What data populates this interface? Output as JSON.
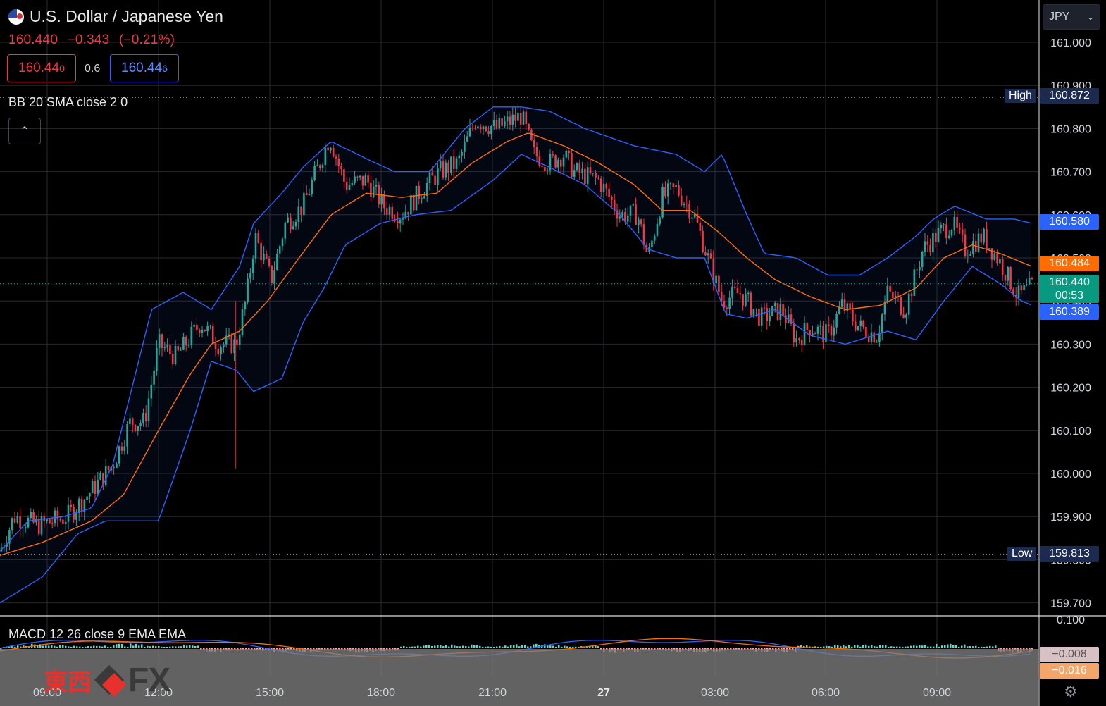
{
  "header": {
    "symbol_name": "U.S. Dollar / Japanese Yen",
    "last_price": "160.440",
    "change": "−0.343",
    "change_pct": "(−0.21%)",
    "bid_main": "160.44",
    "bid_sup": "0",
    "spread": "0.6",
    "ask_main": "160.44",
    "ask_sup": "6"
  },
  "indicators": {
    "bb_label": "BB 20 SMA close 2 0",
    "macd_label": "MACD 12 26 close 9 EMA EMA",
    "collapse_icon": "chevron-up-icon"
  },
  "price_axis": {
    "currency": "JPY",
    "ticks": [
      "161.000",
      "160.900",
      "160.800",
      "160.700",
      "160.600",
      "160.500",
      "160.400",
      "160.300",
      "160.200",
      "160.100",
      "160.000",
      "159.900",
      "159.800",
      "159.700",
      "0.100"
    ],
    "high_label": "High",
    "high_value": "160.872",
    "low_label": "Low",
    "low_value": "159.813",
    "bb_upper_value": "160.580",
    "bb_basis_value": "160.484",
    "current_value": "160.440",
    "countdown": "00:53",
    "bb_lower_value": "160.389",
    "macd_value_1": "−0.008",
    "macd_value_2": "−0.016"
  },
  "time_axis": {
    "labels": [
      "09:00",
      "12:00",
      "15:00",
      "18:00",
      "21:00",
      "27",
      "03:00",
      "06:00",
      "09:00"
    ]
  },
  "colors": {
    "up": "#26a69a",
    "down": "#f23645",
    "bb_band": "#2962ff",
    "bb_basis": "#ff6d00",
    "macd_line": "#2962ff",
    "signal_line": "#ff6d00",
    "current_tag": "#089981",
    "upper_tag": "#2962ff",
    "basis_tag": "#ff6d00"
  },
  "watermark": {
    "kanji": "東西",
    "fx": "FX"
  },
  "chart_data": {
    "type": "candlestick",
    "title": "U.S. Dollar / Japanese Yen",
    "y_range": [
      159.7,
      161.02
    ],
    "anchors": [
      [
        0,
        159.82
      ],
      [
        20,
        159.9
      ],
      [
        55,
        159.88
      ],
      [
        95,
        159.9
      ],
      [
        130,
        159.96
      ],
      [
        160,
        160.02
      ],
      [
        185,
        160.12
      ],
      [
        205,
        160.12
      ],
      [
        225,
        160.3
      ],
      [
        250,
        160.27
      ],
      [
        285,
        160.35
      ],
      [
        310,
        160.3
      ],
      [
        335,
        160.3
      ],
      [
        350,
        160.41
      ],
      [
        362,
        160.55
      ],
      [
        385,
        160.45
      ],
      [
        405,
        160.58
      ],
      [
        430,
        160.62
      ],
      [
        468,
        160.78
      ],
      [
        490,
        160.67
      ],
      [
        520,
        160.68
      ],
      [
        545,
        160.62
      ],
      [
        570,
        160.6
      ],
      [
        600,
        160.66
      ],
      [
        625,
        160.7
      ],
      [
        650,
        160.72
      ],
      [
        675,
        160.82
      ],
      [
        705,
        160.8
      ],
      [
        740,
        160.83
      ],
      [
        758,
        160.74
      ],
      [
        780,
        160.72
      ],
      [
        800,
        160.74
      ],
      [
        815,
        160.7
      ],
      [
        850,
        160.68
      ],
      [
        880,
        160.6
      ],
      [
        905,
        160.6
      ],
      [
        920,
        160.5
      ],
      [
        940,
        160.64
      ],
      [
        960,
        160.66
      ],
      [
        985,
        160.6
      ],
      [
        1005,
        160.5
      ],
      [
        1025,
        160.4
      ],
      [
        1050,
        160.42
      ],
      [
        1080,
        160.36
      ],
      [
        1110,
        160.38
      ],
      [
        1130,
        160.31
      ],
      [
        1150,
        160.34
      ],
      [
        1175,
        160.32
      ],
      [
        1195,
        160.39
      ],
      [
        1220,
        160.34
      ],
      [
        1245,
        160.32
      ],
      [
        1260,
        160.42
      ],
      [
        1285,
        160.38
      ],
      [
        1310,
        160.52
      ],
      [
        1335,
        160.56
      ],
      [
        1352,
        160.58
      ],
      [
        1370,
        160.52
      ],
      [
        1395,
        160.55
      ],
      [
        1420,
        160.49
      ],
      [
        1445,
        160.41
      ],
      [
        1470,
        160.44
      ]
    ],
    "bb_upper_anchors": [
      [
        0,
        159.82
      ],
      [
        40,
        159.89
      ],
      [
        90,
        159.9
      ],
      [
        130,
        159.92
      ],
      [
        160,
        160.02
      ],
      [
        215,
        160.38
      ],
      [
        260,
        160.42
      ],
      [
        300,
        160.38
      ],
      [
        340,
        160.48
      ],
      [
        360,
        160.58
      ],
      [
        400,
        160.65
      ],
      [
        430,
        160.71
      ],
      [
        470,
        160.77
      ],
      [
        520,
        160.73
      ],
      [
        560,
        160.7
      ],
      [
        610,
        160.7
      ],
      [
        660,
        160.8
      ],
      [
        700,
        160.85
      ],
      [
        740,
        160.85
      ],
      [
        780,
        160.84
      ],
      [
        830,
        160.8
      ],
      [
        900,
        160.76
      ],
      [
        960,
        160.74
      ],
      [
        1000,
        160.7
      ],
      [
        1025,
        160.74
      ],
      [
        1060,
        160.6
      ],
      [
        1085,
        160.51
      ],
      [
        1130,
        160.5
      ],
      [
        1175,
        160.46
      ],
      [
        1220,
        160.46
      ],
      [
        1260,
        160.5
      ],
      [
        1300,
        160.55
      ],
      [
        1325,
        160.59
      ],
      [
        1355,
        160.62
      ],
      [
        1400,
        160.59
      ],
      [
        1440,
        160.59
      ],
      [
        1465,
        160.58
      ]
    ],
    "bb_lower_anchors": [
      [
        0,
        159.7
      ],
      [
        60,
        159.76
      ],
      [
        110,
        159.86
      ],
      [
        150,
        159.89
      ],
      [
        225,
        159.89
      ],
      [
        270,
        160.1
      ],
      [
        300,
        160.26
      ],
      [
        335,
        160.24
      ],
      [
        360,
        160.19
      ],
      [
        400,
        160.22
      ],
      [
        430,
        160.35
      ],
      [
        460,
        160.43
      ],
      [
        490,
        160.53
      ],
      [
        540,
        160.58
      ],
      [
        590,
        160.6
      ],
      [
        640,
        160.61
      ],
      [
        700,
        160.68
      ],
      [
        740,
        160.74
      ],
      [
        780,
        160.71
      ],
      [
        830,
        160.67
      ],
      [
        880,
        160.6
      ],
      [
        920,
        160.52
      ],
      [
        960,
        160.5
      ],
      [
        1000,
        160.5
      ],
      [
        1030,
        160.37
      ],
      [
        1060,
        160.36
      ],
      [
        1100,
        160.38
      ],
      [
        1150,
        160.32
      ],
      [
        1200,
        160.3
      ],
      [
        1260,
        160.33
      ],
      [
        1300,
        160.31
      ],
      [
        1340,
        160.4
      ],
      [
        1380,
        160.48
      ],
      [
        1420,
        160.44
      ],
      [
        1450,
        160.4
      ],
      [
        1465,
        160.39
      ]
    ],
    "bb_basis_anchors": [
      [
        0,
        159.81
      ],
      [
        60,
        159.84
      ],
      [
        130,
        159.89
      ],
      [
        175,
        159.95
      ],
      [
        225,
        160.1
      ],
      [
        270,
        160.23
      ],
      [
        300,
        160.3
      ],
      [
        340,
        160.33
      ],
      [
        380,
        160.4
      ],
      [
        420,
        160.49
      ],
      [
        470,
        160.6
      ],
      [
        520,
        160.65
      ],
      [
        570,
        160.64
      ],
      [
        620,
        160.65
      ],
      [
        670,
        160.72
      ],
      [
        720,
        160.77
      ],
      [
        750,
        160.79
      ],
      [
        800,
        160.76
      ],
      [
        850,
        160.72
      ],
      [
        900,
        160.67
      ],
      [
        940,
        160.61
      ],
      [
        980,
        160.61
      ],
      [
        1020,
        160.56
      ],
      [
        1060,
        160.5
      ],
      [
        1100,
        160.45
      ],
      [
        1150,
        160.41
      ],
      [
        1200,
        160.38
      ],
      [
        1250,
        160.39
      ],
      [
        1300,
        160.43
      ],
      [
        1340,
        160.5
      ],
      [
        1380,
        160.53
      ],
      [
        1420,
        160.51
      ],
      [
        1465,
        160.48
      ]
    ]
  }
}
